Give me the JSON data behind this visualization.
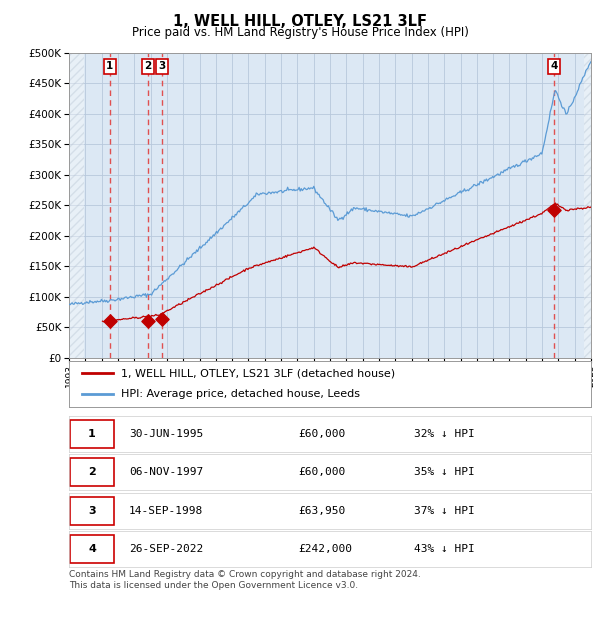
{
  "title": "1, WELL HILL, OTLEY, LS21 3LF",
  "subtitle": "Price paid vs. HM Land Registry's House Price Index (HPI)",
  "footer": "Contains HM Land Registry data © Crown copyright and database right 2024.\nThis data is licensed under the Open Government Licence v3.0.",
  "legend_line1": "1, WELL HILL, OTLEY, LS21 3LF (detached house)",
  "legend_line2": "HPI: Average price, detached house, Leeds",
  "transactions": [
    {
      "id": 1,
      "date": "30-JUN-1995",
      "price": 60000,
      "price_str": "£60,000",
      "pct": "32% ↓ HPI",
      "year_x": 1995.5
    },
    {
      "id": 2,
      "date": "06-NOV-1997",
      "price": 60000,
      "price_str": "£60,000",
      "pct": "35% ↓ HPI",
      "year_x": 1997.83
    },
    {
      "id": 3,
      "date": "14-SEP-1998",
      "price": 63950,
      "price_str": "£63,950",
      "pct": "37% ↓ HPI",
      "year_x": 1998.7
    },
    {
      "id": 4,
      "date": "26-SEP-2022",
      "price": 242000,
      "price_str": "£242,000",
      "pct": "43% ↓ HPI",
      "year_x": 2022.73
    }
  ],
  "hpi_color": "#5b9bd5",
  "red_color": "#c00000",
  "marker_color": "#c00000",
  "vline_color": "#e05050",
  "grid_color": "#b8c8dc",
  "plot_bg": "#dce8f4",
  "hatch_color": "#b0bece",
  "xmin": 1993,
  "xmax": 2025,
  "ymin": 0,
  "ymax": 500000,
  "yticks": [
    0,
    50000,
    100000,
    150000,
    200000,
    250000,
    300000,
    350000,
    400000,
    450000,
    500000
  ]
}
